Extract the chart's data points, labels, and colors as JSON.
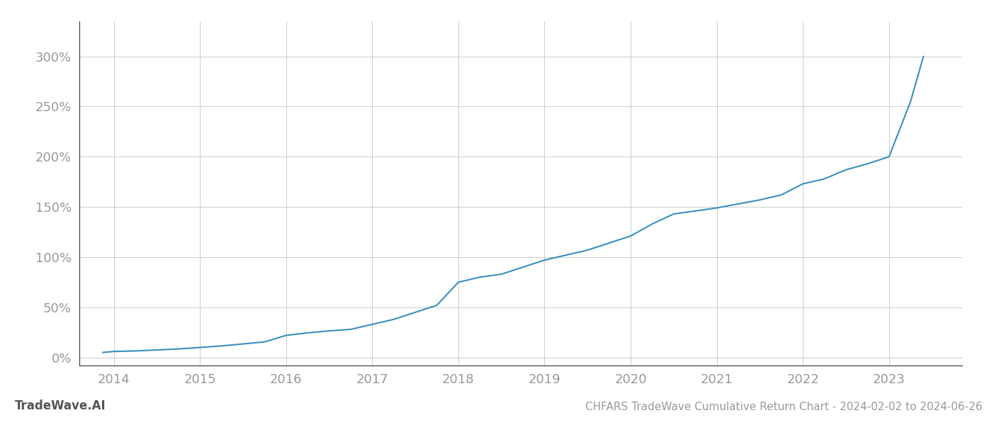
{
  "title": "CHFARS TradeWave Cumulative Return Chart - 2024-02-02 to 2024-06-26",
  "watermark": "TradeWave.AI",
  "line_color": "#3a8fbf",
  "background_color": "#ffffff",
  "grid_color": "#cccccc",
  "x_years": [
    2014,
    2015,
    2016,
    2017,
    2018,
    2019,
    2020,
    2021,
    2022,
    2023
  ],
  "x_values": [
    2013.87,
    2014.0,
    2014.25,
    2014.5,
    2014.75,
    2015.0,
    2015.25,
    2015.5,
    2015.75,
    2016.0,
    2016.25,
    2016.5,
    2016.75,
    2017.0,
    2017.25,
    2017.5,
    2017.75,
    2018.0,
    2018.25,
    2018.5,
    2018.75,
    2019.0,
    2019.25,
    2019.5,
    2019.75,
    2020.0,
    2020.25,
    2020.5,
    2020.75,
    2021.0,
    2021.25,
    2021.5,
    2021.75,
    2022.0,
    2022.25,
    2022.5,
    2022.75,
    2023.0,
    2023.25,
    2023.4
  ],
  "y_values": [
    0.05,
    0.06,
    0.065,
    0.075,
    0.085,
    0.1,
    0.115,
    0.135,
    0.155,
    0.22,
    0.245,
    0.265,
    0.28,
    0.33,
    0.38,
    0.45,
    0.52,
    0.75,
    0.8,
    0.83,
    0.9,
    0.97,
    1.02,
    1.07,
    1.14,
    1.21,
    1.33,
    1.43,
    1.46,
    1.49,
    1.53,
    1.57,
    1.62,
    1.73,
    1.78,
    1.87,
    1.93,
    2.0,
    2.55,
    3.0
  ],
  "yticks": [
    0.0,
    0.5,
    1.0,
    1.5,
    2.0,
    2.5,
    3.0
  ],
  "ytick_labels": [
    "0%",
    "50%",
    "100%",
    "150%",
    "200%",
    "250%",
    "300%"
  ],
  "ylim": [
    -0.08,
    3.35
  ],
  "xlim": [
    2013.6,
    2023.85
  ],
  "title_fontsize": 11,
  "watermark_fontsize": 12,
  "axis_label_color": "#999999",
  "tick_fontsize": 13,
  "spine_color": "#333333"
}
